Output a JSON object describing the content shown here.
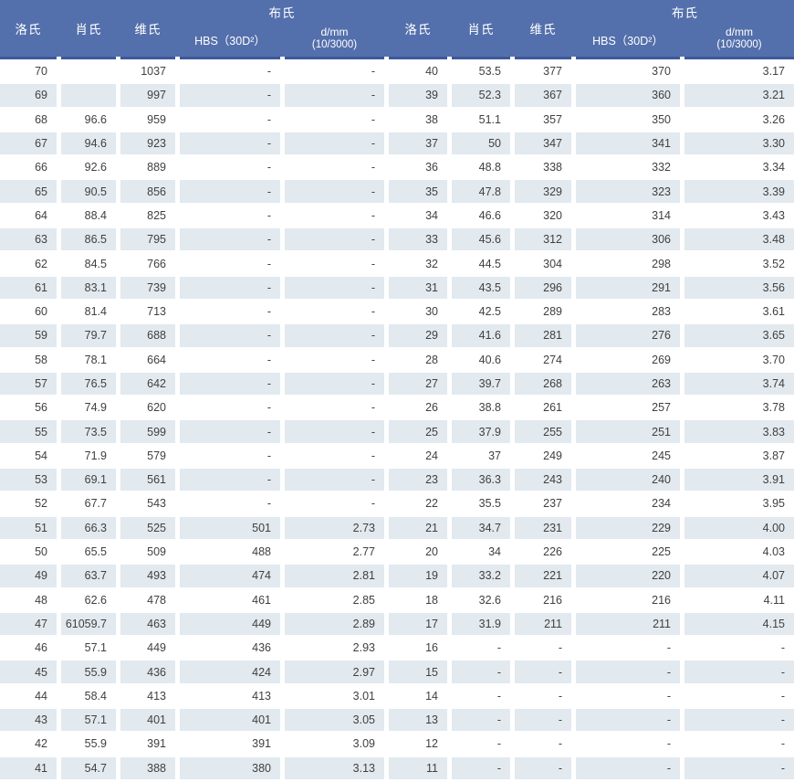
{
  "header": {
    "rockwell": "洛氏",
    "shore": "肖氏",
    "vickers": "维氏",
    "brinell": "布氏",
    "hbs": "HBS（30D²）",
    "dmm_line1": "d/mm",
    "dmm_line2": "(10/3000)"
  },
  "colors": {
    "header_bg": "#5470ac",
    "header_border": "#3d589c",
    "stripe": "#e2e9ef",
    "text": "#404040",
    "header_text": "#ffffff"
  },
  "rows": [
    [
      "70",
      "",
      "1037",
      "-",
      "-",
      "40",
      "53.5",
      "377",
      "370",
      "3.17"
    ],
    [
      "69",
      "",
      "997",
      "-",
      "-",
      "39",
      "52.3",
      "367",
      "360",
      "3.21"
    ],
    [
      "68",
      "96.6",
      "959",
      "-",
      "-",
      "38",
      "51.1",
      "357",
      "350",
      "3.26"
    ],
    [
      "67",
      "94.6",
      "923",
      "-",
      "-",
      "37",
      "50",
      "347",
      "341",
      "3.30"
    ],
    [
      "66",
      "92.6",
      "889",
      "-",
      "-",
      "36",
      "48.8",
      "338",
      "332",
      "3.34"
    ],
    [
      "65",
      "90.5",
      "856",
      "-",
      "-",
      "35",
      "47.8",
      "329",
      "323",
      "3.39"
    ],
    [
      "64",
      "88.4",
      "825",
      "-",
      "-",
      "34",
      "46.6",
      "320",
      "314",
      "3.43"
    ],
    [
      "63",
      "86.5",
      "795",
      "-",
      "-",
      "33",
      "45.6",
      "312",
      "306",
      "3.48"
    ],
    [
      "62",
      "84.5",
      "766",
      "-",
      "-",
      "32",
      "44.5",
      "304",
      "298",
      "3.52"
    ],
    [
      "61",
      "83.1",
      "739",
      "-",
      "-",
      "31",
      "43.5",
      "296",
      "291",
      "3.56"
    ],
    [
      "60",
      "81.4",
      "713",
      "-",
      "-",
      "30",
      "42.5",
      "289",
      "283",
      "3.61"
    ],
    [
      "59",
      "79.7",
      "688",
      "-",
      "-",
      "29",
      "41.6",
      "281",
      "276",
      "3.65"
    ],
    [
      "58",
      "78.1",
      "664",
      "-",
      "-",
      "28",
      "40.6",
      "274",
      "269",
      "3.70"
    ],
    [
      "57",
      "76.5",
      "642",
      "-",
      "-",
      "27",
      "39.7",
      "268",
      "263",
      "3.74"
    ],
    [
      "56",
      "74.9",
      "620",
      "-",
      "-",
      "26",
      "38.8",
      "261",
      "257",
      "3.78"
    ],
    [
      "55",
      "73.5",
      "599",
      "-",
      "-",
      "25",
      "37.9",
      "255",
      "251",
      "3.83"
    ],
    [
      "54",
      "71.9",
      "579",
      "-",
      "-",
      "24",
      "37",
      "249",
      "245",
      "3.87"
    ],
    [
      "53",
      "69.1",
      "561",
      "-",
      "-",
      "23",
      "36.3",
      "243",
      "240",
      "3.91"
    ],
    [
      "52",
      "67.7",
      "543",
      "-",
      "-",
      "22",
      "35.5",
      "237",
      "234",
      "3.95"
    ],
    [
      "51",
      "66.3",
      "525",
      "501",
      "2.73",
      "21",
      "34.7",
      "231",
      "229",
      "4.00"
    ],
    [
      "50",
      "65.5",
      "509",
      "488",
      "2.77",
      "20",
      "34",
      "226",
      "225",
      "4.03"
    ],
    [
      "49",
      "63.7",
      "493",
      "474",
      "2.81",
      "19",
      "33.2",
      "221",
      "220",
      "4.07"
    ],
    [
      "48",
      "62.6",
      "478",
      "461",
      "2.85",
      "18",
      "32.6",
      "216",
      "216",
      "4.11"
    ],
    [
      "47",
      "61059.7",
      "463",
      "449",
      "2.89",
      "17",
      "31.9",
      "211",
      "211",
      "4.15"
    ],
    [
      "46",
      "57.1",
      "449",
      "436",
      "2.93",
      "16",
      "-",
      "-",
      "-",
      "-"
    ],
    [
      "45",
      "55.9",
      "436",
      "424",
      "2.97",
      "15",
      "-",
      "-",
      "-",
      "-"
    ],
    [
      "44",
      "58.4",
      "413",
      "413",
      "3.01",
      "14",
      "-",
      "-",
      "-",
      "-"
    ],
    [
      "43",
      "57.1",
      "401",
      "401",
      "3.05",
      "13",
      "-",
      "-",
      "-",
      "-"
    ],
    [
      "42",
      "55.9",
      "391",
      "391",
      "3.09",
      "12",
      "-",
      "-",
      "-",
      "-"
    ],
    [
      "41",
      "54.7",
      "388",
      "380",
      "3.13",
      "11",
      "-",
      "-",
      "-",
      "-"
    ]
  ]
}
